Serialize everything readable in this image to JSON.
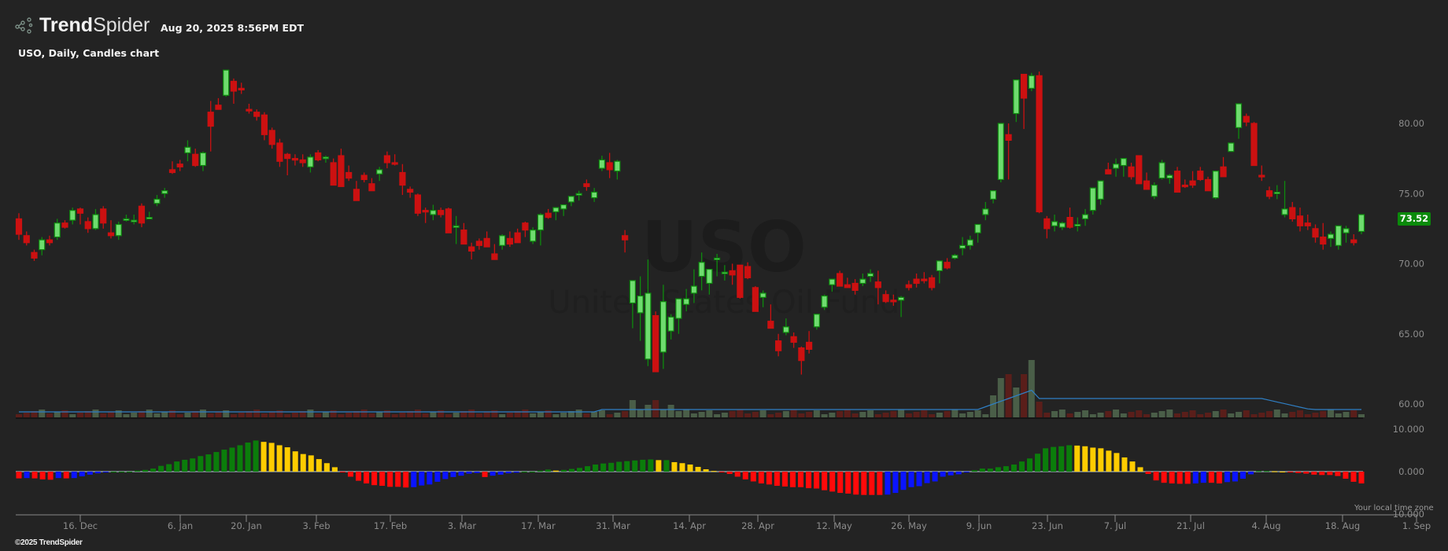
{
  "header": {
    "brand_bold": "Trend",
    "brand_light": "Spider",
    "timestamp": "Aug 20, 2025 8:56PM EDT",
    "chart_title": "USO, Daily, Candles chart"
  },
  "watermark": {
    "symbol": "USO",
    "name": "United States Oil Fund"
  },
  "last_price_label": "73.52",
  "footer": {
    "copyright": "©2025 TrendSpider",
    "local_time_zone": "Your local time zone"
  },
  "colors": {
    "background": "#232323",
    "up_candle_fill": "#6fdc6f",
    "up_candle_border": "#0e8a0e",
    "down_candle": "#cc1111",
    "volume_up": "#4a5e48",
    "volume_down": "#5a1e1a",
    "volume_ma": "#2f7fc4",
    "osc_green": "#0b7d0b",
    "osc_yellow": "#ffcc00",
    "osc_red": "#ff0a0a",
    "osc_blue": "#0a14ff",
    "axis_text": "#8c8c8c",
    "last_price_bg": "#0a8a0a"
  },
  "chart_data": {
    "type": "candlestick",
    "title": "USO, Daily, Candles chart",
    "symbol": "USO",
    "interval": "Daily",
    "price_axis": {
      "ticks": [
        "80.00",
        "75.00",
        "70.00",
        "65.00",
        "60.00"
      ],
      "tick_values": [
        80,
        75,
        70,
        65,
        60
      ],
      "position": "right"
    },
    "oscillator_axis": {
      "ticks": [
        "10.000",
        "0.000",
        "-10.000"
      ],
      "tick_values": [
        10,
        0,
        -10
      ]
    },
    "x_axis": {
      "ticks": [
        "16. Dec",
        "6. Jan",
        "20. Jan",
        "3. Feb",
        "17. Feb",
        "3. Mar",
        "17. Mar",
        "31. Mar",
        "14. Apr",
        "28. Apr",
        "12. May",
        "26. May",
        "9. Jun",
        "23. Jun",
        "7. Jul",
        "21. Jul",
        "4. Aug",
        "18. Aug",
        "1. Sep"
      ],
      "tick_x": [
        102,
        229,
        313,
        402,
        496,
        587,
        684,
        779,
        876,
        963,
        1060,
        1155,
        1244,
        1331,
        1417,
        1513,
        1609,
        1706,
        1800
      ]
    },
    "last_price": 73.52,
    "candles_ohlc_estimated": [
      [
        73.2,
        73.6,
        71.7,
        72.1
      ],
      [
        72.0,
        72.3,
        71.3,
        71.5
      ],
      [
        70.8,
        71.0,
        70.2,
        70.4
      ],
      [
        71.0,
        71.9,
        70.6,
        71.7
      ],
      [
        71.7,
        72.0,
        71.3,
        71.5
      ],
      [
        71.9,
        73.2,
        71.7,
        72.9
      ],
      [
        72.9,
        73.1,
        72.5,
        72.6
      ],
      [
        73.1,
        74.0,
        72.8,
        73.8
      ],
      [
        73.9,
        74.0,
        72.8,
        73.6
      ],
      [
        73.0,
        73.3,
        72.2,
        72.5
      ],
      [
        72.5,
        73.9,
        72.4,
        73.5
      ],
      [
        73.9,
        74.1,
        72.5,
        72.9
      ],
      [
        72.2,
        73.1,
        71.8,
        72.0
      ],
      [
        72.0,
        73.0,
        71.7,
        72.8
      ],
      [
        73.2,
        73.5,
        73.0,
        73.2
      ],
      [
        73.0,
        73.5,
        72.8,
        73.1
      ],
      [
        74.1,
        74.3,
        72.6,
        72.9
      ],
      [
        73.3,
        73.7,
        73.2,
        73.3
      ],
      [
        74.3,
        74.9,
        74.1,
        74.6
      ],
      [
        75.0,
        75.4,
        74.7,
        75.2
      ],
      [
        76.7,
        77.3,
        76.4,
        76.5
      ],
      [
        77.1,
        77.4,
        76.6,
        76.9
      ],
      [
        77.9,
        78.8,
        77.3,
        78.3
      ],
      [
        77.8,
        78.2,
        76.9,
        77.0
      ],
      [
        77.0,
        78.0,
        76.6,
        77.9
      ],
      [
        80.8,
        81.6,
        78.0,
        79.8
      ],
      [
        81.3,
        81.8,
        81.1,
        81.0
      ],
      [
        82.0,
        83.7,
        81.9,
        83.8
      ],
      [
        83.0,
        83.2,
        81.4,
        82.3
      ],
      [
        82.5,
        82.9,
        82.1,
        82.4
      ],
      [
        81.0,
        81.4,
        80.7,
        80.9
      ],
      [
        80.8,
        81.0,
        80.2,
        80.5
      ],
      [
        80.6,
        80.8,
        78.8,
        79.2
      ],
      [
        79.5,
        79.7,
        78.2,
        78.5
      ],
      [
        78.6,
        78.9,
        76.9,
        77.3
      ],
      [
        77.8,
        77.9,
        76.3,
        77.5
      ],
      [
        77.5,
        77.8,
        77.0,
        77.4
      ],
      [
        77.4,
        77.8,
        76.9,
        77.2
      ],
      [
        76.9,
        77.8,
        76.5,
        77.6
      ],
      [
        77.9,
        78.1,
        77.3,
        77.4
      ],
      [
        77.5,
        77.7,
        77.2,
        77.6
      ],
      [
        77.2,
        77.5,
        75.9,
        75.6
      ],
      [
        77.7,
        78.2,
        75.6,
        75.5
      ],
      [
        76.5,
        77.0,
        75.9,
        76.1
      ],
      [
        75.3,
        75.9,
        74.8,
        74.5
      ],
      [
        76.3,
        76.5,
        75.8,
        76.0
      ],
      [
        75.7,
        76.1,
        75.3,
        75.2
      ],
      [
        76.4,
        76.9,
        75.9,
        76.7
      ],
      [
        77.7,
        78.0,
        76.8,
        77.2
      ],
      [
        77.2,
        77.8,
        77.0,
        77.1
      ],
      [
        76.5,
        77.1,
        74.9,
        75.6
      ],
      [
        75.3,
        75.5,
        74.7,
        75.1
      ],
      [
        74.9,
        75.0,
        73.4,
        73.6
      ],
      [
        73.8,
        74.0,
        72.9,
        73.7
      ],
      [
        73.5,
        74.2,
        73.1,
        73.8
      ],
      [
        73.8,
        74.0,
        73.3,
        73.5
      ],
      [
        73.9,
        74.0,
        72.5,
        72.2
      ],
      [
        72.6,
        73.4,
        71.4,
        72.7
      ],
      [
        72.4,
        72.9,
        71.7,
        71.4
      ],
      [
        71.2,
        71.5,
        70.3,
        70.9
      ],
      [
        71.6,
        71.8,
        71.0,
        71.3
      ],
      [
        71.8,
        72.3,
        71.5,
        71.2
      ],
      [
        70.7,
        71.4,
        70.5,
        70.3
      ],
      [
        71.3,
        72.1,
        71.0,
        72.0
      ],
      [
        71.8,
        72.3,
        71.2,
        71.4
      ],
      [
        72.2,
        72.5,
        71.8,
        71.5
      ],
      [
        72.9,
        73.0,
        71.9,
        72.4
      ],
      [
        71.6,
        72.6,
        71.4,
        72.4
      ],
      [
        72.4,
        73.6,
        71.3,
        73.5
      ],
      [
        73.6,
        73.9,
        73.2,
        73.3
      ],
      [
        73.7,
        74.0,
        73.1,
        74.0
      ],
      [
        73.9,
        74.0,
        73.4,
        74.2
      ],
      [
        74.4,
        74.8,
        74.1,
        74.8
      ],
      [
        74.9,
        75.2,
        74.5,
        75.0
      ],
      [
        75.7,
        76.0,
        75.2,
        75.5
      ],
      [
        74.7,
        75.4,
        74.4,
        75.1
      ],
      [
        76.8,
        77.7,
        76.6,
        77.4
      ],
      [
        77.2,
        77.9,
        76.1,
        76.7
      ],
      [
        76.6,
        77.4,
        76.0,
        77.3
      ],
      [
        72.0,
        72.4,
        70.8,
        71.7
      ],
      [
        67.2,
        68.6,
        65.4,
        68.8
      ],
      [
        66.5,
        69.1,
        64.5,
        67.7
      ],
      [
        63.2,
        70.3,
        62.7,
        67.9
      ],
      [
        66.3,
        66.6,
        63.3,
        62.3
      ],
      [
        63.7,
        68.5,
        62.5,
        67.3
      ],
      [
        65.2,
        66.4,
        64.6,
        66.2
      ],
      [
        66.1,
        67.3,
        65.0,
        67.5
      ],
      [
        67.1,
        68.2,
        66.6,
        67.5
      ],
      [
        67.9,
        69.6,
        67.2,
        68.4
      ],
      [
        69.1,
        70.8,
        68.1,
        70.1
      ],
      [
        68.6,
        69.3,
        67.8,
        69.6
      ],
      [
        70.4,
        70.7,
        69.1,
        70.4
      ],
      [
        69.3,
        69.9,
        68.8,
        69.4
      ],
      [
        69.5,
        70.0,
        68.5,
        69.2
      ],
      [
        69.9,
        69.5,
        67.5,
        67.6
      ],
      [
        69.8,
        70.1,
        68.9,
        69.0
      ],
      [
        68.3,
        68.4,
        66.6,
        66.6
      ],
      [
        67.6,
        68.1,
        66.9,
        67.9
      ],
      [
        65.9,
        67.1,
        65.8,
        65.4
      ],
      [
        64.5,
        65.0,
        63.4,
        63.8
      ],
      [
        65.1,
        66.1,
        64.9,
        65.5
      ],
      [
        64.8,
        65.1,
        64.0,
        64.4
      ],
      [
        64.0,
        64.1,
        62.1,
        63.1
      ],
      [
        64.4,
        65.2,
        63.6,
        63.9
      ],
      [
        65.5,
        66.2,
        65.3,
        66.4
      ],
      [
        66.9,
        67.8,
        66.7,
        67.7
      ],
      [
        68.5,
        68.9,
        68.0,
        68.9
      ],
      [
        69.3,
        69.5,
        68.4,
        68.4
      ],
      [
        68.5,
        69.0,
        68.3,
        68.3
      ],
      [
        68.6,
        68.9,
        67.8,
        68.1
      ],
      [
        68.6,
        69.3,
        68.4,
        68.9
      ],
      [
        69.1,
        69.6,
        68.7,
        69.3
      ],
      [
        68.7,
        69.5,
        67.1,
        68.3
      ],
      [
        67.8,
        68.1,
        67.2,
        67.3
      ],
      [
        67.4,
        67.8,
        67.0,
        67.3
      ],
      [
        67.4,
        67.7,
        66.2,
        67.6
      ],
      [
        68.5,
        68.8,
        68.1,
        68.3
      ],
      [
        68.9,
        69.3,
        68.3,
        68.6
      ],
      [
        68.9,
        69.4,
        68.6,
        68.8
      ],
      [
        69.0,
        69.2,
        68.1,
        68.3
      ],
      [
        69.5,
        70.0,
        68.6,
        70.2
      ],
      [
        70.1,
        70.4,
        69.6,
        69.7
      ],
      [
        70.4,
        70.7,
        70.3,
        70.6
      ],
      [
        71.1,
        71.9,
        70.6,
        71.3
      ],
      [
        71.3,
        72.0,
        71.0,
        71.7
      ],
      [
        72.2,
        72.6,
        71.5,
        72.8
      ],
      [
        73.5,
        74.4,
        73.1,
        73.9
      ],
      [
        74.6,
        75.1,
        74.3,
        75.2
      ],
      [
        76.0,
        79.9,
        75.8,
        80.0
      ],
      [
        79.2,
        80.0,
        76.0,
        78.8
      ],
      [
        80.7,
        83.1,
        80.1,
        83.1
      ],
      [
        83.5,
        83.5,
        79.6,
        81.8
      ],
      [
        82.5,
        83.6,
        82.3,
        83.4
      ],
      [
        83.4,
        83.7,
        73.6,
        73.7
      ],
      [
        73.2,
        73.4,
        71.8,
        72.5
      ],
      [
        72.7,
        73.5,
        72.3,
        73.0
      ],
      [
        72.6,
        73.0,
        72.4,
        72.9
      ],
      [
        73.3,
        74.0,
        72.5,
        72.6
      ],
      [
        72.8,
        73.3,
        72.3,
        72.8
      ],
      [
        73.2,
        73.9,
        72.7,
        73.5
      ],
      [
        73.8,
        74.7,
        73.5,
        75.4
      ],
      [
        74.6,
        75.4,
        74.2,
        75.9
      ],
      [
        76.7,
        77.2,
        76.5,
        76.4
      ],
      [
        76.8,
        77.5,
        76.2,
        77.1
      ],
      [
        77.0,
        77.5,
        76.2,
        77.5
      ],
      [
        76.9,
        77.2,
        76.0,
        76.2
      ],
      [
        77.7,
        77.7,
        75.8,
        75.7
      ],
      [
        75.9,
        76.5,
        75.6,
        75.3
      ],
      [
        74.8,
        75.8,
        74.6,
        75.6
      ],
      [
        76.1,
        77.4,
        76.0,
        77.2
      ],
      [
        76.1,
        76.4,
        75.7,
        76.3
      ],
      [
        76.6,
        76.9,
        75.7,
        75.1
      ],
      [
        75.6,
        76.0,
        75.4,
        75.5
      ],
      [
        75.9,
        76.6,
        75.4,
        75.6
      ],
      [
        76.6,
        76.9,
        75.9,
        76.0
      ],
      [
        76.0,
        76.2,
        75.2,
        75.2
      ],
      [
        74.7,
        76.3,
        74.6,
        76.6
      ],
      [
        76.9,
        77.6,
        76.5,
        76.2
      ],
      [
        78.0,
        78.6,
        78.0,
        78.6
      ],
      [
        79.7,
        80.0,
        78.9,
        81.4
      ],
      [
        80.5,
        80.7,
        79.8,
        80.1
      ],
      [
        80.0,
        80.1,
        77.3,
        77.0
      ],
      [
        76.3,
        77.0,
        75.9,
        76.2
      ],
      [
        75.2,
        75.5,
        74.6,
        74.8
      ],
      [
        75.0,
        75.6,
        74.6,
        75.1
      ],
      [
        73.5,
        75.9,
        73.3,
        73.9
      ],
      [
        74.0,
        74.4,
        73.0,
        73.2
      ],
      [
        73.4,
        74.0,
        72.3,
        72.7
      ],
      [
        72.9,
        73.5,
        72.4,
        72.7
      ],
      [
        72.5,
        72.8,
        71.5,
        71.9
      ],
      [
        71.9,
        72.9,
        71.0,
        71.4
      ],
      [
        71.8,
        72.3,
        71.2,
        72.1
      ],
      [
        71.3,
        72.6,
        71.0,
        72.7
      ],
      [
        72.2,
        72.7,
        71.5,
        72.5
      ],
      [
        71.7,
        72.1,
        71.3,
        71.5
      ],
      [
        72.3,
        73.1,
        72.1,
        73.5
      ]
    ],
    "volume": {
      "ma_line": "blue ~20-day average",
      "notable_spikes_dates": [
        "~13-23 Jun 2025"
      ]
    },
    "oscillator": {
      "type": "histogram",
      "color_coding": {
        "green": "positive rising",
        "yellow": "positive falling",
        "red": "negative falling",
        "blue": "negative rising"
      },
      "values_estimated": [
        -2.0,
        -1.9,
        -2.0,
        -2.3,
        -2.4,
        -1.9,
        -2.0,
        -1.9,
        -1.4,
        -0.9,
        -0.5,
        -0.2,
        0,
        0,
        0,
        0.3,
        0.5,
        0.9,
        1.7,
        2.2,
        3.0,
        3.5,
        3.9,
        4.6,
        5.1,
        5.8,
        6.5,
        7.1,
        7.8,
        8.6,
        9.2,
        8.8,
        8.5,
        7.8,
        7.2,
        6.0,
        5.2,
        4.8,
        3.7,
        2.5,
        1.3,
        -0.2,
        -1.5,
        -2.7,
        -3.5,
        -4.0,
        -4.2,
        -4.5,
        -4.5,
        -4.7,
        -4.6,
        -4.1,
        -3.8,
        -3.0,
        -2.2,
        -1.6,
        -1.2,
        -0.6,
        -0.4,
        -1.6,
        -1.2,
        -0.9,
        -0.5,
        -0.3,
        0,
        0,
        0.3,
        0.6,
        0.3,
        0.5,
        0.8,
        1.1,
        1.6,
        2.1,
        2.4,
        2.6,
        2.9,
        3.1,
        3.3,
        3.5,
        3.6,
        3.4,
        3.4,
        2.8,
        2.5,
        2.1,
        1.4,
        0.7,
        0.2,
        -0.2,
        -0.7,
        -1.5,
        -2.3,
        -2.9,
        -3.5,
        -3.8,
        -4.2,
        -4.4,
        -4.6,
        -4.6,
        -4.9,
        -5.0,
        -5.5,
        -5.9,
        -6.3,
        -6.5,
        -6.8,
        -6.9,
        -6.9,
        -6.9,
        -6.8,
        -6.3,
        -5.4,
        -4.6,
        -4.3,
        -3.4,
        -2.9,
        -1.5,
        -1.1,
        -0.8,
        -0.2,
        0.4,
        0.9,
        0.9,
        1.3,
        1.6,
        2.1,
        3.0,
        3.9,
        5.3,
        6.9,
        7.3,
        7.5,
        7.8,
        7.7,
        7.5,
        7.1,
        6.9,
        6.2,
        5.5,
        4.2,
        3.0,
        1.3,
        -0.7,
        -2.6,
        -3.3,
        -3.5,
        -3.6,
        -3.6,
        -3.5,
        -3.3,
        -3.3,
        -3.5,
        -3.1,
        -2.9,
        -2.1,
        -0.8,
        0.2,
        0.2,
        0.1,
        0,
        -0.1,
        -0.4,
        -0.6,
        -0.9,
        -1.0,
        -1.0,
        -1.3,
        -2.1,
        -3.0,
        -3.5
      ]
    }
  }
}
